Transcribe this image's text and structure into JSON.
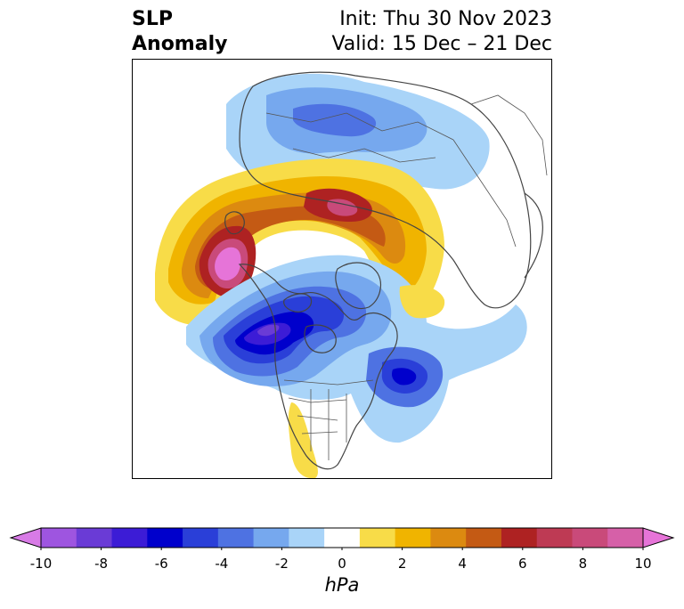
{
  "title": {
    "left_line1": "SLP",
    "left_line2": "Anomaly",
    "right_line1": "Init: Thu 30 Nov 2023",
    "right_line2": "Valid: 15 Dec – 21 Dec"
  },
  "colorbar": {
    "unit": "hPa",
    "ticks": [
      "-10",
      "-8",
      "-6",
      "-4",
      "-2",
      "0",
      "2",
      "4",
      "6",
      "8",
      "10"
    ],
    "colors": [
      "#d87be6",
      "#9e55e0",
      "#6a3bd6",
      "#3c1cd6",
      "#0000cc",
      "#2a3fd8",
      "#4e72e2",
      "#76a8ee",
      "#a9d4f8",
      "#ffffff",
      "#f8dc48",
      "#f0b400",
      "#dc8a10",
      "#c45a14",
      "#ae2222",
      "#be3a54",
      "#c94a7a",
      "#d660a8",
      "#e674d8"
    ],
    "min": -10,
    "max": 10
  },
  "map": {
    "projection": "north-polar-stereographic",
    "features": [
      "coastlines",
      "country-borders",
      "state-borders"
    ]
  }
}
